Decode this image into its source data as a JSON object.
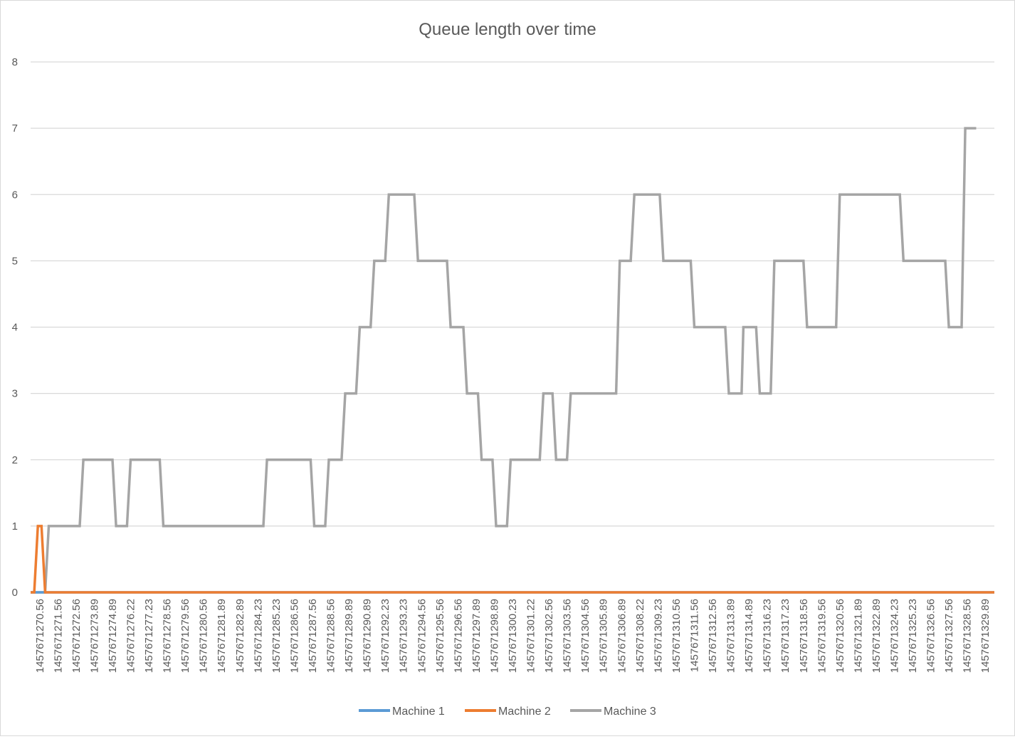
{
  "chart_data": {
    "type": "line",
    "title": "Queue length over time",
    "xlabel": "",
    "ylabel": "",
    "ylim": [
      0,
      8
    ],
    "y_ticks": [
      0,
      1,
      2,
      3,
      4,
      5,
      6,
      7,
      8
    ],
    "x_tick_labels": [
      "1457671270.56",
      "1457671271.56",
      "1457671272.56",
      "1457671273.89",
      "1457671274.89",
      "1457671276.22",
      "1457671277.23",
      "1457671278.56",
      "1457671279.56",
      "1457671280.56",
      "1457671281.89",
      "1457671282.89",
      "1457671284.23",
      "1457671285.23",
      "1457671286.56",
      "1457671287.56",
      "1457671288.56",
      "1457671289.89",
      "1457671290.89",
      "1457671292.23",
      "1457671293.23",
      "1457671294.56",
      "1457671295.56",
      "1457671296.56",
      "1457671297.89",
      "1457671298.89",
      "1457671300.23",
      "1457671301.22",
      "1457671302.56",
      "1457671303.56",
      "1457671304.56",
      "1457671305.89",
      "1457671306.89",
      "1457671308.22",
      "1457671309.23",
      "1457671310.56",
      "1457671311.56",
      "1457671312.56",
      "1457671313.89",
      "1457671314.89",
      "1457671316.23",
      "1457671317.23",
      "1457671318.56",
      "1457671319.56",
      "1457671320.56",
      "1457671321.89",
      "1457671322.89",
      "1457671324.23",
      "1457671325.23",
      "1457671326.56",
      "1457671327.56",
      "1457671328.56",
      "1457671329.89"
    ],
    "grid": true,
    "legend_position": "bottom",
    "series": [
      {
        "name": "Machine 1",
        "color": "#5b9bd5",
        "points": [
          [
            0,
            0
          ],
          [
            53,
            0
          ]
        ]
      },
      {
        "name": "Machine 2",
        "color": "#ed7d31",
        "points": [
          [
            0,
            0
          ],
          [
            0.2,
            0
          ],
          [
            0.4,
            1
          ],
          [
            0.6,
            1
          ],
          [
            0.8,
            0
          ],
          [
            1,
            0
          ],
          [
            53,
            0
          ]
        ]
      },
      {
        "name": "Machine 3",
        "color": "#a5a5a5",
        "points": [
          [
            0,
            0
          ],
          [
            0.8,
            0
          ],
          [
            1.0,
            1
          ],
          [
            2.7,
            1
          ],
          [
            2.9,
            2
          ],
          [
            4.5,
            2
          ],
          [
            4.7,
            1
          ],
          [
            5.3,
            1
          ],
          [
            5.5,
            2
          ],
          [
            7.1,
            2
          ],
          [
            7.3,
            1
          ],
          [
            12.8,
            1
          ],
          [
            13.0,
            2
          ],
          [
            15.4,
            2
          ],
          [
            15.6,
            1
          ],
          [
            16.2,
            1
          ],
          [
            16.4,
            2
          ],
          [
            17.1,
            2
          ],
          [
            17.3,
            3
          ],
          [
            17.9,
            3
          ],
          [
            18.1,
            4
          ],
          [
            18.7,
            4
          ],
          [
            18.9,
            5
          ],
          [
            19.5,
            5
          ],
          [
            19.7,
            6
          ],
          [
            21.1,
            6
          ],
          [
            21.3,
            5
          ],
          [
            22.9,
            5
          ],
          [
            23.1,
            4
          ],
          [
            23.8,
            4
          ],
          [
            24.0,
            3
          ],
          [
            24.6,
            3
          ],
          [
            24.8,
            2
          ],
          [
            25.4,
            2
          ],
          [
            25.6,
            1
          ],
          [
            26.2,
            1
          ],
          [
            26.4,
            2
          ],
          [
            28.0,
            2
          ],
          [
            28.2,
            3
          ],
          [
            28.7,
            3
          ],
          [
            28.9,
            2
          ],
          [
            29.5,
            2
          ],
          [
            29.7,
            3
          ],
          [
            32.2,
            3
          ],
          [
            32.4,
            5
          ],
          [
            33.0,
            5
          ],
          [
            33.2,
            6
          ],
          [
            34.6,
            6
          ],
          [
            34.8,
            5
          ],
          [
            36.3,
            5
          ],
          [
            36.5,
            4
          ],
          [
            38.2,
            4
          ],
          [
            38.4,
            3
          ],
          [
            39.1,
            3
          ],
          [
            39.2,
            4
          ],
          [
            39.9,
            4
          ],
          [
            40.1,
            3
          ],
          [
            40.7,
            3
          ],
          [
            40.9,
            5
          ],
          [
            42.5,
            5
          ],
          [
            42.7,
            4
          ],
          [
            44.3,
            4
          ],
          [
            44.5,
            6
          ],
          [
            47.8,
            6
          ],
          [
            48.0,
            5
          ],
          [
            50.3,
            5
          ],
          [
            50.5,
            4
          ],
          [
            51.2,
            4
          ],
          [
            51.4,
            7
          ],
          [
            52,
            7
          ]
        ]
      }
    ]
  }
}
